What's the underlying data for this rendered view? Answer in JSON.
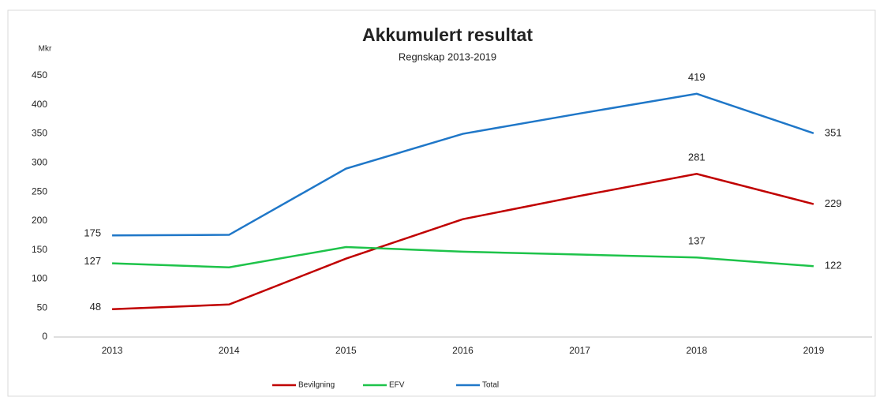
{
  "chart_data": {
    "type": "line",
    "title": "Akkumulert resultat",
    "subtitle": "Regnskap 2013-2019",
    "y_label": "Mkr",
    "categories": [
      "2013",
      "2014",
      "2015",
      "2016",
      "2017",
      "2018",
      "2019"
    ],
    "series": [
      {
        "name": "Bevilgning",
        "color": "#c00000",
        "values": [
          48,
          56,
          135,
          203,
          243,
          281,
          229
        ],
        "data_labels": [
          0,
          5,
          6
        ]
      },
      {
        "name": "EFV",
        "color": "#1ec34a",
        "values": [
          127,
          120,
          155,
          147,
          142,
          137,
          122
        ],
        "data_labels": [
          0,
          5,
          6
        ]
      },
      {
        "name": "Total",
        "color": "#1f77c8",
        "values": [
          175,
          176,
          290,
          350,
          385,
          419,
          351
        ],
        "data_labels": [
          0,
          5,
          6
        ]
      }
    ],
    "ylim": [
      0,
      450
    ],
    "yticks": [
      0,
      50,
      100,
      150,
      200,
      250,
      300,
      350,
      400,
      450
    ],
    "grid": false,
    "legend": "bottom"
  }
}
